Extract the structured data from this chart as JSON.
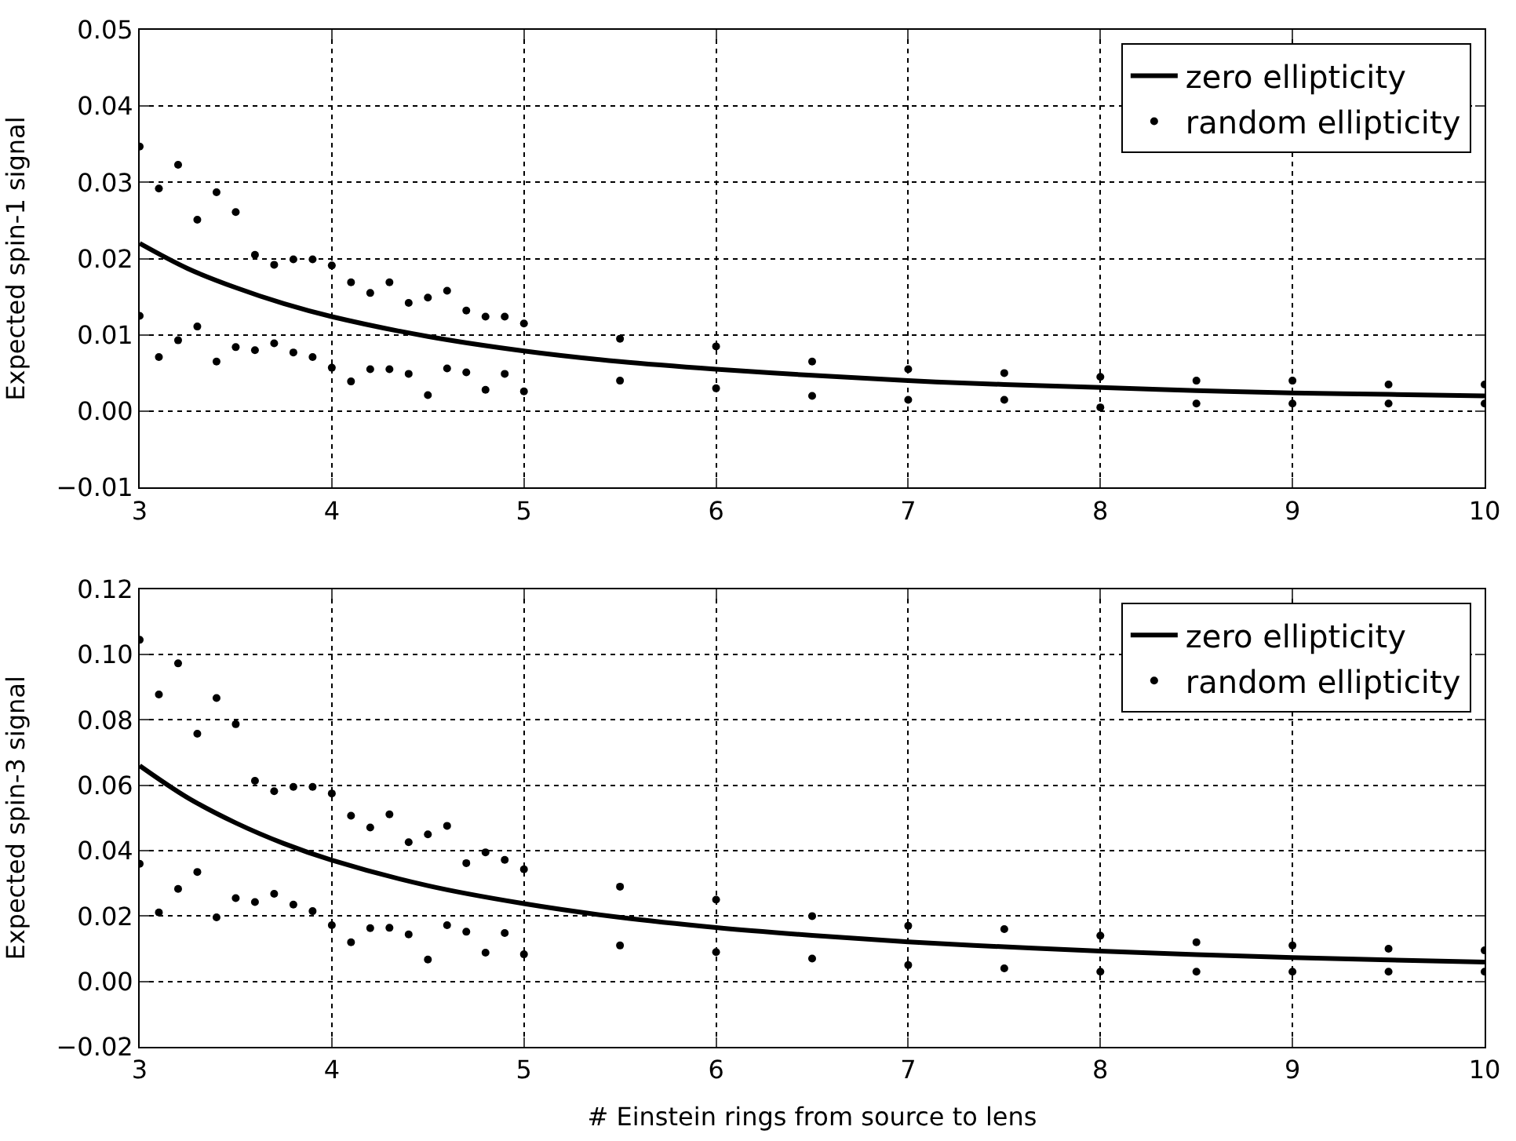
{
  "chart_data": [
    {
      "type": "line",
      "ylabel": "Expected spin-1 signal",
      "xlim": [
        3,
        10
      ],
      "xticks": [
        3,
        4,
        5,
        6,
        7,
        8,
        9,
        10
      ],
      "ylim": [
        -0.01,
        0.05
      ],
      "yticks": [
        {
          "value": -0.01,
          "label": "−0.01"
        },
        {
          "value": 0,
          "label": "0.00"
        },
        {
          "value": 0.01,
          "label": "0.01"
        },
        {
          "value": 0.02,
          "label": "0.02"
        },
        {
          "value": 0.03,
          "label": "0.03"
        },
        {
          "value": 0.04,
          "label": "0.04"
        },
        {
          "value": 0.05,
          "label": "0.05"
        }
      ],
      "grid": true,
      "legend": "top right",
      "series": [
        {
          "name": "zero ellipticity",
          "color": "#000000",
          "line_style": "solid",
          "x": [
            3,
            3.25,
            3.5,
            3.75,
            4,
            4.5,
            5,
            5.5,
            6,
            6.5,
            7,
            7.5,
            8,
            8.5,
            9,
            9.5,
            10
          ],
          "values": [
            0.022,
            0.0187,
            0.0162,
            0.0141,
            0.0124,
            0.0098,
            0.0079,
            0.0065,
            0.0055,
            0.0047,
            0.004,
            0.0035,
            0.0031,
            0.0027,
            0.0024,
            0.0022,
            0.002
          ]
        },
        {
          "name": "random ellipticity",
          "type": "scatter",
          "color": "#000000",
          "marker": "circle",
          "x": [
            3,
            3,
            3.1,
            3.1,
            3.2,
            3.2,
            3.3,
            3.3,
            3.4,
            3.4,
            3.5,
            3.5,
            3.6,
            3.6,
            3.7,
            3.7,
            3.8,
            3.8,
            3.9,
            3.9,
            4,
            4,
            4.1,
            4.1,
            4.2,
            4.2,
            4.3,
            4.3,
            4.4,
            4.4,
            4.5,
            4.5,
            4.6,
            4.6,
            4.7,
            4.7,
            4.8,
            4.8,
            4.9,
            4.9,
            5,
            5,
            5.5,
            5.5,
            6,
            6,
            6.5,
            6.5,
            7,
            7,
            7.5,
            7.5,
            8,
            8,
            8.5,
            8.5,
            9,
            9,
            9.5,
            9.5,
            10,
            10
          ],
          "values": [
            0.0347,
            0.0125,
            0.0292,
            0.0071,
            0.0323,
            0.0093,
            0.0251,
            0.0111,
            0.0287,
            0.0065,
            0.0261,
            0.0084,
            0.0205,
            0.008,
            0.0192,
            0.0089,
            0.0199,
            0.0077,
            0.0199,
            0.0071,
            0.0191,
            0.0057,
            0.0169,
            0.0039,
            0.0155,
            0.0055,
            0.0169,
            0.0055,
            0.0142,
            0.0049,
            0.0149,
            0.0021,
            0.0158,
            0.0056,
            0.0132,
            0.0051,
            0.0124,
            0.0028,
            0.0124,
            0.0049,
            0.0115,
            0.0026,
            0.0095,
            0.004,
            0.0085,
            0.003,
            0.0065,
            0.002,
            0.0055,
            0.0015,
            0.005,
            0.0015,
            0.0045,
            0.0005,
            0.004,
            0.001,
            0.004,
            0.001,
            0.0035,
            0.001,
            0.0035,
            0.001
          ]
        }
      ]
    },
    {
      "type": "line",
      "ylabel": "Expected spin-3 signal",
      "xlabel": "# Einstein rings from source to lens",
      "xlim": [
        3,
        10
      ],
      "xticks": [
        3,
        4,
        5,
        6,
        7,
        8,
        9,
        10
      ],
      "ylim": [
        -0.02,
        0.12
      ],
      "yticks": [
        {
          "value": -0.02,
          "label": "−0.02"
        },
        {
          "value": 0,
          "label": "0.00"
        },
        {
          "value": 0.02,
          "label": "0.02"
        },
        {
          "value": 0.04,
          "label": "0.04"
        },
        {
          "value": 0.06,
          "label": "0.06"
        },
        {
          "value": 0.08,
          "label": "0.08"
        },
        {
          "value": 0.1,
          "label": "0.10"
        },
        {
          "value": 0.12,
          "label": "0.12"
        }
      ],
      "grid": true,
      "legend": "top right",
      "series": [
        {
          "name": "zero ellipticity",
          "color": "#000000",
          "line_style": "solid",
          "x": [
            3,
            3.25,
            3.5,
            3.75,
            4,
            4.5,
            5,
            5.5,
            6,
            6.5,
            7,
            7.5,
            8,
            8.5,
            9,
            9.5,
            10
          ],
          "values": [
            0.066,
            0.0562,
            0.0485,
            0.0422,
            0.0371,
            0.0293,
            0.0238,
            0.0196,
            0.0165,
            0.0141,
            0.0121,
            0.0106,
            0.0093,
            0.0082,
            0.0073,
            0.0066,
            0.0059
          ]
        },
        {
          "name": "random ellipticity",
          "type": "scatter",
          "color": "#000000",
          "marker": "circle",
          "x": [
            3,
            3,
            3.1,
            3.1,
            3.2,
            3.2,
            3.3,
            3.3,
            3.4,
            3.4,
            3.5,
            3.5,
            3.6,
            3.6,
            3.7,
            3.7,
            3.8,
            3.8,
            3.9,
            3.9,
            4,
            4,
            4.1,
            4.1,
            4.2,
            4.2,
            4.3,
            4.3,
            4.4,
            4.4,
            4.5,
            4.5,
            4.6,
            4.6,
            4.7,
            4.7,
            4.8,
            4.8,
            4.9,
            4.9,
            5,
            5,
            5.5,
            5.5,
            6,
            6,
            6.5,
            6.5,
            7,
            7,
            7.5,
            7.5,
            8,
            8,
            8.5,
            8.5,
            9,
            9,
            9.5,
            9.5,
            10,
            10
          ],
          "values": [
            0.1045,
            0.036,
            0.0878,
            0.0211,
            0.0973,
            0.0283,
            0.0758,
            0.0335,
            0.0867,
            0.0196,
            0.0787,
            0.0255,
            0.0614,
            0.0243,
            0.0582,
            0.0268,
            0.0595,
            0.0235,
            0.0595,
            0.0215,
            0.0575,
            0.0172,
            0.0507,
            0.012,
            0.0471,
            0.0163,
            0.0511,
            0.0164,
            0.0426,
            0.0144,
            0.045,
            0.0067,
            0.0476,
            0.0172,
            0.0362,
            0.0152,
            0.0395,
            0.0088,
            0.0372,
            0.0148,
            0.0343,
            0.0083,
            0.029,
            0.011,
            0.025,
            0.009,
            0.02,
            0.007,
            0.017,
            0.005,
            0.016,
            0.004,
            0.014,
            0.003,
            0.012,
            0.003,
            0.011,
            0.003,
            0.01,
            0.003,
            0.0095,
            0.003
          ]
        }
      ]
    }
  ]
}
